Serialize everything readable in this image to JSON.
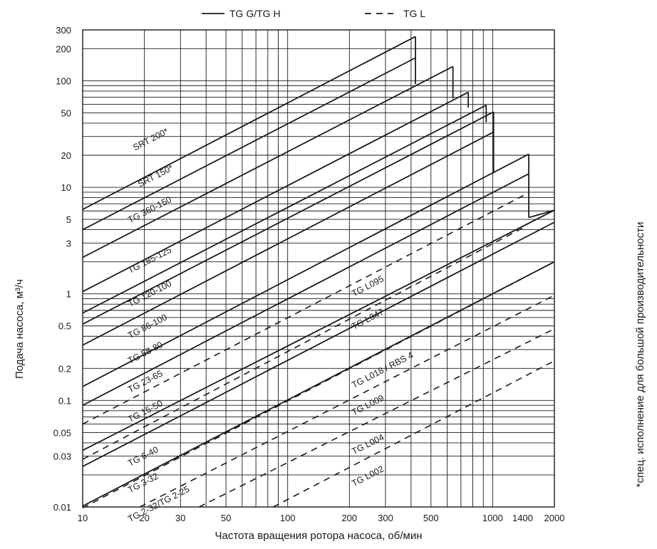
{
  "chart_data": {
    "type": "line",
    "xscale": "log",
    "yscale": "log",
    "xlim": [
      10,
      2000
    ],
    "ylim": [
      0.01,
      300
    ],
    "grid": true,
    "xlabel": "Частота вращения ротора насоса, об/мин",
    "ylabel": "Подача насоса, м³/ч",
    "side_note": "*спец. исполнение для большой производительности",
    "legend": {
      "placement": "top",
      "entries": [
        {
          "label": "TG G/TG H",
          "style": "solid"
        },
        {
          "label": "TG L",
          "style": "dashed"
        }
      ]
    },
    "xticks": [
      {
        "value": 10,
        "label": "10"
      },
      {
        "value": 20,
        "label": "20"
      },
      {
        "value": 30,
        "label": "30"
      },
      {
        "value": 50,
        "label": "50"
      },
      {
        "value": 100,
        "label": "100"
      },
      {
        "value": 200,
        "label": "200"
      },
      {
        "value": 300,
        "label": "300"
      },
      {
        "value": 500,
        "label": "500"
      },
      {
        "value": 1000,
        "label": "1000"
      },
      {
        "value": 1400,
        "label": "1400"
      },
      {
        "value": 2000,
        "label": "2000"
      }
    ],
    "yticks": [
      {
        "value": 0.01,
        "label": "0.01"
      },
      {
        "value": 0.03,
        "label": "0.03"
      },
      {
        "value": 0.05,
        "label": "0.05"
      },
      {
        "value": 0.1,
        "label": "0.1"
      },
      {
        "value": 0.2,
        "label": "0.2"
      },
      {
        "value": 0.5,
        "label": "0.5"
      },
      {
        "value": 1,
        "label": "1"
      },
      {
        "value": 3,
        "label": "3"
      },
      {
        "value": 5,
        "label": "5"
      },
      {
        "value": 10,
        "label": "10"
      },
      {
        "value": 20,
        "label": "20"
      },
      {
        "value": 50,
        "label": "50"
      },
      {
        "value": 100,
        "label": "100"
      },
      {
        "value": 200,
        "label": "200"
      },
      {
        "value": 300,
        "label": "300"
      }
    ],
    "series": [
      {
        "name": "SRT 200*",
        "style": "solid",
        "x": [
          10,
          420
        ],
        "y": [
          6.2,
          260
        ],
        "label_at": [
          18,
          22
        ]
      },
      {
        "name": "SRT 150*",
        "style": "solid",
        "x": [
          10,
          420
        ],
        "y": [
          4.0,
          164
        ],
        "label_at": [
          19,
          10
        ]
      },
      {
        "name": "TG 360-150",
        "style": "solid",
        "x": [
          10,
          640
        ],
        "y": [
          2.2,
          136
        ],
        "label_at": [
          17,
          4.6
        ]
      },
      {
        "name": "TG 185-125",
        "style": "solid",
        "x": [
          10,
          760
        ],
        "y": [
          1.05,
          78
        ],
        "label_at": [
          17,
          1.55
        ]
      },
      {
        "name": "TG 120-100",
        "style": "solid",
        "x": [
          10,
          930
        ],
        "y": [
          0.66,
          59
        ],
        "label_at": [
          17,
          0.75
        ]
      },
      {
        "name": "TG 86-100",
        "style": "solid",
        "x": [
          10,
          1010
        ],
        "y": [
          0.52,
          51
        ],
        "label_at": [
          17,
          0.38
        ]
      },
      {
        "name": "TG 58-80",
        "style": "solid",
        "x": [
          10,
          1010
        ],
        "y": [
          0.33,
          33
        ],
        "label_at": [
          17,
          0.22
        ]
      },
      {
        "name": "TG 23-65",
        "style": "solid",
        "x": [
          10,
          1500
        ],
        "y": [
          0.135,
          20.5
        ],
        "label_at": [
          17,
          0.118
        ]
      },
      {
        "name": "TG 15-50",
        "style": "solid",
        "x": [
          10,
          1500
        ],
        "y": [
          0.09,
          13.4
        ],
        "label_at": [
          17,
          0.062
        ]
      },
      {
        "name": "TG 6-40",
        "style": "solid",
        "x": [
          10,
          2000
        ],
        "y": [
          0.034,
          6.1
        ],
        "label_at": [
          17,
          0.024
        ]
      },
      {
        "name": "TG 3-32",
        "style": "solid",
        "x": [
          10,
          2000
        ],
        "y": [
          0.024,
          4.7
        ],
        "label_at": [
          17,
          0.0135
        ]
      },
      {
        "name": "TG 2-32/TG 2-25",
        "style": "solid",
        "x": [
          10,
          2000
        ],
        "y": [
          0.0102,
          2.0
        ],
        "label_at": [
          17,
          0.0072
        ]
      },
      {
        "name": "TG L095",
        "style": "dashed",
        "x": [
          10,
          1450
        ],
        "y": [
          0.06,
          8.6
        ],
        "label_at": [
          210,
          0.94
        ]
      },
      {
        "name": "TG L047",
        "style": "dashed",
        "x": [
          10,
          1450
        ],
        "y": [
          0.028,
          4.3
        ],
        "label_at": [
          210,
          0.46
        ]
      },
      {
        "name": "TG L018 / RBS 4",
        "style": "dashed",
        "x": [
          10,
          2000
        ],
        "y": [
          0.0098,
          2.0
        ],
        "label_at": [
          210,
          0.13
        ]
      },
      {
        "name": "TG L009",
        "style": "dashed",
        "x": [
          19,
          2000
        ],
        "y": [
          0.01,
          0.97
        ],
        "label_at": [
          210,
          0.072
        ]
      },
      {
        "name": "TG L004",
        "style": "dashed",
        "x": [
          37,
          2000
        ],
        "y": [
          0.01,
          0.47
        ],
        "label_at": [
          210,
          0.031
        ]
      },
      {
        "name": "TG L002",
        "style": "dashed",
        "x": [
          85,
          2000
        ],
        "y": [
          0.01,
          0.235
        ],
        "label_at": [
          210,
          0.0155
        ]
      }
    ],
    "drops": [
      {
        "x": 420,
        "y": [
          260,
          93
        ]
      },
      {
        "x": 640,
        "y": [
          136,
          68
        ]
      },
      {
        "x": 760,
        "y": [
          78,
          56
        ]
      },
      {
        "x": 930,
        "y": [
          59,
          41
        ]
      },
      {
        "x": 1010,
        "y": [
          51,
          13.5
        ]
      },
      {
        "x": 1500,
        "y": [
          20.5,
          5.2
        ]
      }
    ],
    "tails": [
      {
        "style": "solid",
        "x": [
          1500,
          2000
        ],
        "y": [
          5.2,
          6.1
        ]
      }
    ]
  }
}
